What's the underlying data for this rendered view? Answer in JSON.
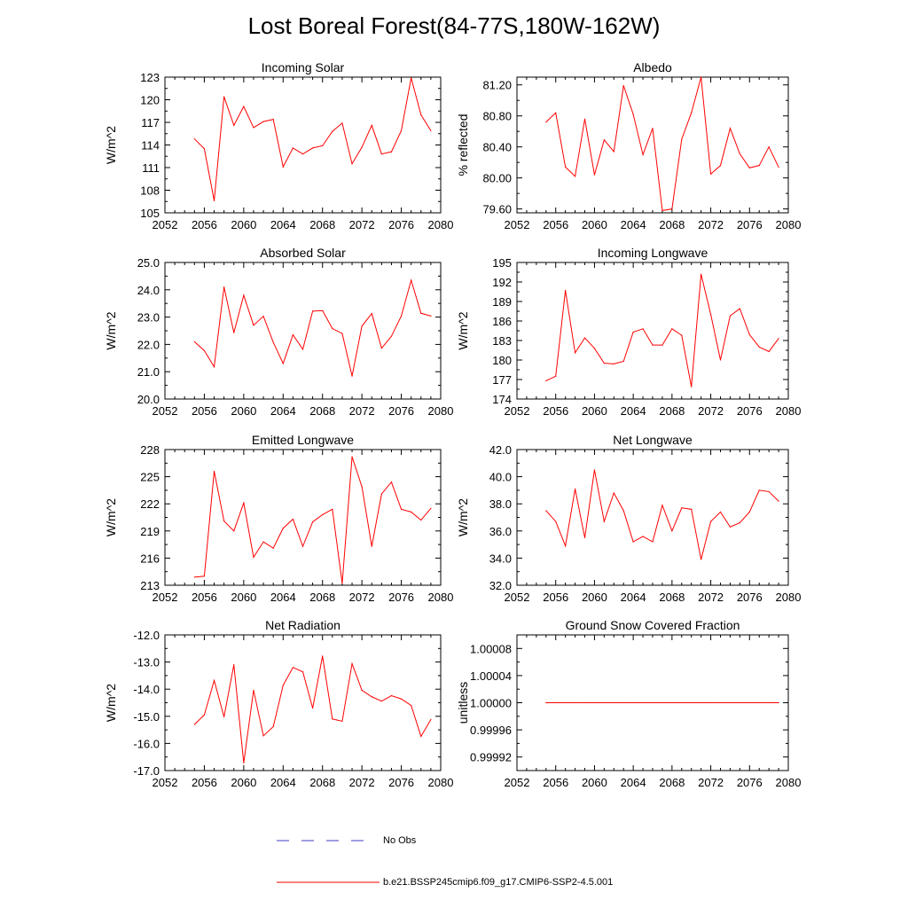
{
  "title": "Lost Boreal Forest(84-77S,180W-162W)",
  "colors": {
    "series": "#ff0000",
    "obs": "#3f3fbf",
    "axis": "#000000"
  },
  "legend": {
    "obs_label": "No Obs",
    "model_label": "b.e21.BSSP245cmip6.f09_g17.CMIP6-SSP2-4.5.001"
  },
  "chart_data": [
    {
      "type": "line",
      "title": "Incoming Solar",
      "ylabel": "W/m^2",
      "xlim": [
        2052,
        2080
      ],
      "ylim": [
        105,
        123
      ],
      "xticks": [
        "2052",
        "2056",
        "2060",
        "2064",
        "2068",
        "2072",
        "2076",
        "2080"
      ],
      "yticks": [
        "105",
        "108",
        "111",
        "114",
        "117",
        "120",
        "123"
      ],
      "ytick_values": [
        105,
        108,
        111,
        114,
        117,
        120,
        123
      ],
      "x": [
        2055,
        2056,
        2057,
        2058,
        2059,
        2060,
        2061,
        2062,
        2063,
        2064,
        2065,
        2066,
        2067,
        2068,
        2069,
        2070,
        2071,
        2072,
        2073,
        2074,
        2075,
        2076,
        2077,
        2078,
        2079
      ],
      "series": [
        {
          "values": [
            114.8,
            113.5,
            106.6,
            120.4,
            116.6,
            119.1,
            116.3,
            117.1,
            117.4,
            111.1,
            113.6,
            112.8,
            113.6,
            113.9,
            115.8,
            116.9,
            111.5,
            113.7,
            116.6,
            112.8,
            113.1,
            115.9,
            122.9,
            118.0,
            115.9
          ]
        }
      ]
    },
    {
      "type": "line",
      "title": "Albedo",
      "ylabel": "% reflected",
      "xlim": [
        2052,
        2080
      ],
      "ylim": [
        79.55,
        81.3
      ],
      "xticks": [
        "2052",
        "2056",
        "2060",
        "2064",
        "2068",
        "2072",
        "2076",
        "2080"
      ],
      "yticks": [
        "79.60",
        "80.00",
        "80.40",
        "80.80",
        "81.20"
      ],
      "ytick_values": [
        79.6,
        80.0,
        80.4,
        80.8,
        81.2
      ],
      "x": [
        2055,
        2056,
        2057,
        2058,
        2059,
        2060,
        2061,
        2062,
        2063,
        2064,
        2065,
        2066,
        2067,
        2068,
        2069,
        2070,
        2071,
        2072,
        2073,
        2074,
        2075,
        2076,
        2077,
        2078,
        2079
      ],
      "series": [
        {
          "values": [
            80.72,
            80.84,
            80.14,
            80.02,
            80.76,
            80.04,
            80.49,
            80.34,
            81.19,
            80.82,
            80.3,
            80.64,
            79.58,
            79.6,
            80.5,
            80.84,
            81.3,
            80.05,
            80.16,
            80.64,
            80.31,
            80.13,
            80.16,
            80.4,
            80.14
          ]
        }
      ]
    },
    {
      "type": "line",
      "title": "Absorbed Solar",
      "ylabel": "W/m^2",
      "xlim": [
        2052,
        2080
      ],
      "ylim": [
        20.0,
        25.0
      ],
      "xticks": [
        "2052",
        "2056",
        "2060",
        "2064",
        "2068",
        "2072",
        "2076",
        "2080"
      ],
      "yticks": [
        "20.0",
        "21.0",
        "22.0",
        "23.0",
        "24.0",
        "25.0"
      ],
      "ytick_values": [
        20,
        21,
        22,
        23,
        24,
        25
      ],
      "x": [
        2055,
        2056,
        2057,
        2058,
        2059,
        2060,
        2061,
        2062,
        2063,
        2064,
        2065,
        2066,
        2067,
        2068,
        2069,
        2070,
        2071,
        2072,
        2073,
        2074,
        2075,
        2076,
        2077,
        2078,
        2079
      ],
      "series": [
        {
          "values": [
            22.1,
            21.77,
            21.18,
            24.1,
            22.43,
            23.8,
            22.7,
            23.03,
            22.08,
            21.3,
            22.35,
            21.82,
            23.22,
            23.24,
            22.58,
            22.4,
            20.84,
            22.67,
            23.13,
            21.86,
            22.3,
            23.04,
            24.35,
            23.14,
            23.04
          ]
        }
      ]
    },
    {
      "type": "line",
      "title": "Incoming Longwave",
      "ylabel": "W/m^2",
      "xlim": [
        2052,
        2080
      ],
      "ylim": [
        174,
        195
      ],
      "xticks": [
        "2052",
        "2056",
        "2060",
        "2064",
        "2068",
        "2072",
        "2076",
        "2080"
      ],
      "yticks": [
        "174",
        "177",
        "180",
        "183",
        "186",
        "189",
        "192",
        "195"
      ],
      "ytick_values": [
        174,
        177,
        180,
        183,
        186,
        189,
        192,
        195
      ],
      "x": [
        2055,
        2056,
        2057,
        2058,
        2059,
        2060,
        2061,
        2062,
        2063,
        2064,
        2065,
        2066,
        2067,
        2068,
        2069,
        2070,
        2071,
        2072,
        2073,
        2074,
        2075,
        2076,
        2077,
        2078,
        2079
      ],
      "series": [
        {
          "values": [
            176.8,
            177.5,
            190.7,
            181.1,
            183.4,
            181.8,
            179.5,
            179.4,
            179.8,
            184.3,
            184.8,
            182.3,
            182.3,
            184.8,
            183.8,
            175.9,
            193.2,
            187.0,
            180.0,
            186.8,
            187.9,
            183.9,
            182.0,
            181.3,
            183.3
          ]
        }
      ]
    },
    {
      "type": "line",
      "title": "Emitted Longwave",
      "ylabel": "W/m^2",
      "xlim": [
        2052,
        2080
      ],
      "ylim": [
        213,
        228
      ],
      "xticks": [
        "2052",
        "2056",
        "2060",
        "2064",
        "2068",
        "2072",
        "2076",
        "2080"
      ],
      "yticks": [
        "213",
        "216",
        "219",
        "222",
        "225",
        "228"
      ],
      "ytick_values": [
        213,
        216,
        219,
        222,
        225,
        228
      ],
      "x": [
        2055,
        2056,
        2057,
        2058,
        2059,
        2060,
        2061,
        2062,
        2063,
        2064,
        2065,
        2066,
        2067,
        2068,
        2069,
        2070,
        2071,
        2072,
        2073,
        2074,
        2075,
        2076,
        2077,
        2078,
        2079
      ],
      "series": [
        {
          "values": [
            213.9,
            214.0,
            225.6,
            220.1,
            219.0,
            222.1,
            216.1,
            217.8,
            217.1,
            219.3,
            220.3,
            217.3,
            220.0,
            220.8,
            221.4,
            213.2,
            227.2,
            223.9,
            217.3,
            223.1,
            224.4,
            221.4,
            221.1,
            220.2,
            221.5
          ]
        }
      ]
    },
    {
      "type": "line",
      "title": "Net Longwave",
      "ylabel": "W/m^2",
      "xlim": [
        2052,
        2080
      ],
      "ylim": [
        32.0,
        42.0
      ],
      "xticks": [
        "2052",
        "2056",
        "2060",
        "2064",
        "2068",
        "2072",
        "2076",
        "2080"
      ],
      "yticks": [
        "32.0",
        "34.0",
        "36.0",
        "38.0",
        "40.0",
        "42.0"
      ],
      "ytick_values": [
        32,
        34,
        36,
        38,
        40,
        42
      ],
      "x": [
        2055,
        2056,
        2057,
        2058,
        2059,
        2060,
        2061,
        2062,
        2063,
        2064,
        2065,
        2066,
        2067,
        2068,
        2069,
        2070,
        2071,
        2072,
        2073,
        2074,
        2075,
        2076,
        2077,
        2078,
        2079
      ],
      "series": [
        {
          "values": [
            37.5,
            36.7,
            34.9,
            39.1,
            35.5,
            40.5,
            36.7,
            38.8,
            37.5,
            35.2,
            35.6,
            35.2,
            37.9,
            36.0,
            37.7,
            37.6,
            33.9,
            36.7,
            37.4,
            36.3,
            36.6,
            37.4,
            39.0,
            38.9,
            38.2
          ]
        }
      ]
    },
    {
      "type": "line",
      "title": "Net Radiation",
      "ylabel": "W/m^2",
      "xlim": [
        2052,
        2080
      ],
      "ylim": [
        -17.0,
        -12.0
      ],
      "xticks": [
        "2052",
        "2056",
        "2060",
        "2064",
        "2068",
        "2072",
        "2076",
        "2080"
      ],
      "yticks": [
        "-17.0",
        "-16.0",
        "-15.0",
        "-14.0",
        "-13.0",
        "-12.0"
      ],
      "ytick_values": [
        -17,
        -16,
        -15,
        -14,
        -13,
        -12
      ],
      "x": [
        2055,
        2056,
        2057,
        2058,
        2059,
        2060,
        2061,
        2062,
        2063,
        2064,
        2065,
        2066,
        2067,
        2068,
        2069,
        2070,
        2071,
        2072,
        2073,
        2074,
        2075,
        2076,
        2077,
        2078,
        2079
      ],
      "series": [
        {
          "values": [
            -15.3,
            -14.95,
            -13.68,
            -15.02,
            -13.1,
            -16.72,
            -14.04,
            -15.72,
            -15.38,
            -13.86,
            -13.2,
            -13.36,
            -14.7,
            -12.78,
            -15.1,
            -15.18,
            -13.06,
            -14.04,
            -14.28,
            -14.44,
            -14.24,
            -14.36,
            -14.6,
            -15.74,
            -15.12
          ]
        }
      ]
    },
    {
      "type": "line",
      "title": "Ground Snow Covered Fraction",
      "ylabel": "unitless",
      "xlim": [
        2052,
        2080
      ],
      "ylim": [
        0.9999,
        1.0001
      ],
      "xticks": [
        "2052",
        "2056",
        "2060",
        "2064",
        "2068",
        "2072",
        "2076",
        "2080"
      ],
      "yticks": [
        "0.99992",
        "0.99996",
        "1.00000",
        "1.00004",
        "1.00008"
      ],
      "ytick_values": [
        0.99992,
        0.99996,
        1.0,
        1.00004,
        1.00008
      ],
      "x": [
        2055,
        2056,
        2057,
        2058,
        2059,
        2060,
        2061,
        2062,
        2063,
        2064,
        2065,
        2066,
        2067,
        2068,
        2069,
        2070,
        2071,
        2072,
        2073,
        2074,
        2075,
        2076,
        2077,
        2078,
        2079
      ],
      "series": [
        {
          "values": [
            1,
            1,
            1,
            1,
            1,
            1,
            1,
            1,
            1,
            1,
            1,
            1,
            1,
            1,
            1,
            1,
            1,
            1,
            1,
            1,
            1,
            1,
            1,
            1,
            1
          ]
        }
      ]
    }
  ]
}
